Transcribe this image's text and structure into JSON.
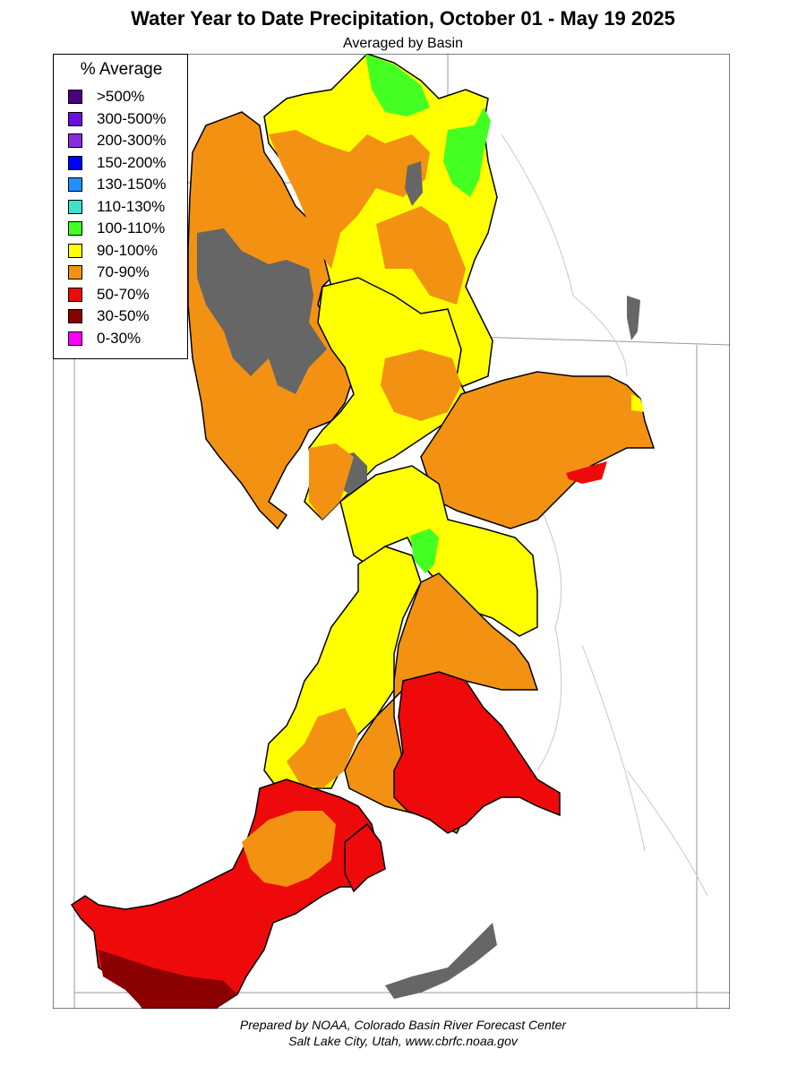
{
  "title": "Water Year to Date Precipitation, October 01  - May 19 2025",
  "subtitle": "Averaged by Basin",
  "legend": {
    "title": "% Average",
    "items": [
      {
        "label": ">500%",
        "color": "#4b0082"
      },
      {
        "label": "300-500%",
        "color": "#6a0fe0"
      },
      {
        "label": "200-300%",
        "color": "#8a2be2"
      },
      {
        "label": "150-200%",
        "color": "#0000ff"
      },
      {
        "label": "130-150%",
        "color": "#1e90ff"
      },
      {
        "label": "110-130%",
        "color": "#40e0d0"
      },
      {
        "label": "100-110%",
        "color": "#44ff22"
      },
      {
        "label": "90-100%",
        "color": "#ffff00"
      },
      {
        "label": "70-90%",
        "color": "#f39212"
      },
      {
        "label": "50-70%",
        "color": "#ee0a0a"
      },
      {
        "label": "30-50%",
        "color": "#8b0000"
      },
      {
        "label": "0-30%",
        "color": "#ff00ff"
      }
    ]
  },
  "map": {
    "no_data_color": "#666666",
    "basins": [
      {
        "category": "70-90%"
      },
      {
        "category": "90-100%"
      },
      {
        "category": "100-110%"
      },
      {
        "category": "50-70%"
      },
      {
        "category": "30-50%"
      }
    ]
  },
  "credits": {
    "line1": "Prepared by NOAA, Colorado Basin River Forecast Center",
    "line2": "Salt Lake City, Utah, www.cbrfc.noaa.gov"
  }
}
